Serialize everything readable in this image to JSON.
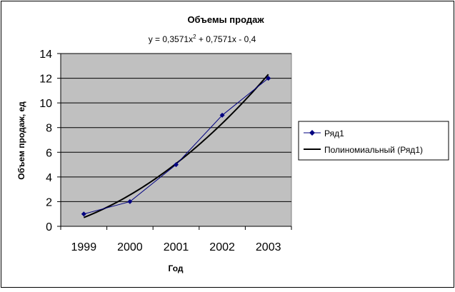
{
  "chart_data": {
    "type": "line",
    "title": "Объемы продаж",
    "trendline_equation": {
      "before_sup": "y = 0,3571x",
      "sup": "2",
      "after_sup": " + 0,7571x - 0,4"
    },
    "xlabel": "Год",
    "ylabel": "Объем продаж, ед",
    "categories": [
      "1999",
      "2000",
      "2001",
      "2002",
      "2003"
    ],
    "ylim": [
      0,
      14
    ],
    "yticks": [
      0,
      2,
      4,
      6,
      8,
      10,
      12,
      14
    ],
    "grid": true,
    "legend_position": "right",
    "series": [
      {
        "name": "Ряд1",
        "values": [
          1,
          2,
          5,
          9,
          12
        ],
        "color": "#000080",
        "marker": "diamond"
      }
    ],
    "trendline": {
      "name": "Полиномиальный (Ряд1)",
      "type": "polynomial",
      "order": 2,
      "coefficients": [
        0.3571,
        0.7571,
        -0.4
      ],
      "color": "#000000"
    },
    "plot_background": "#c0c0c0"
  }
}
